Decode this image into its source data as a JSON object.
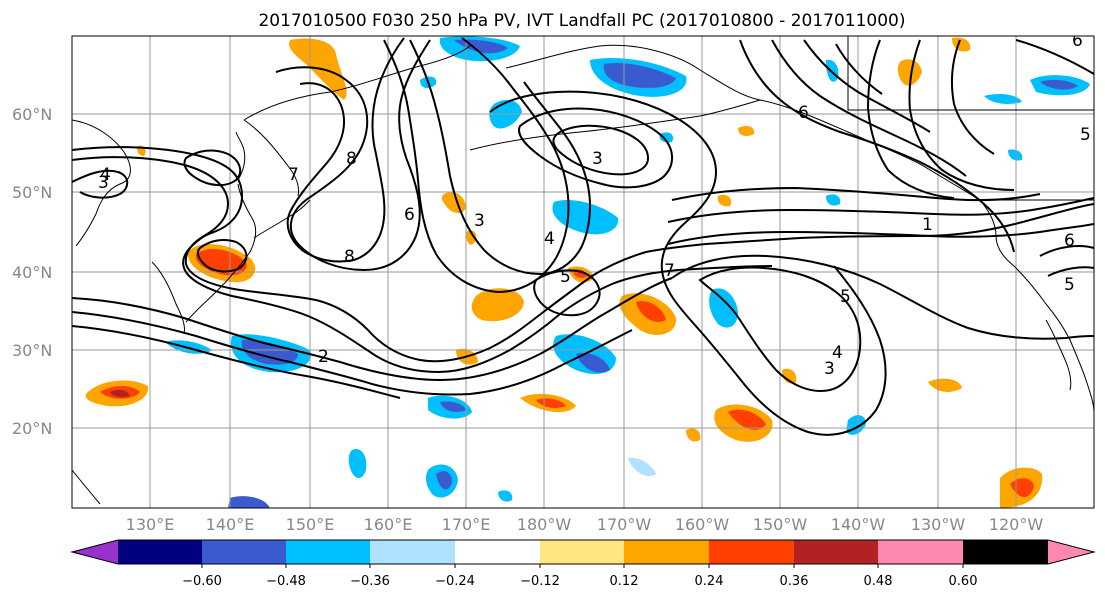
{
  "title": "2017010500 F030 250 hPa PV, IVT Landfall PC (2017010800 - 2017011000)",
  "lat_labels": [
    "20°N",
    "30°N",
    "40°N",
    "50°N",
    "60°N"
  ],
  "lon_labels": [
    "130°E",
    "140°E",
    "150°E",
    "160°E",
    "170°E",
    "180°W",
    "170°W",
    "160°W",
    "150°W",
    "140°W",
    "130°W",
    "120°W"
  ],
  "colorbar": {
    "ticks": [
      "−0.60",
      "−0.48",
      "−0.36",
      "−0.24",
      "−0.12",
      "0.12",
      "0.24",
      "0.36",
      "0.48",
      "0.60"
    ],
    "colors": [
      "#9932cc",
      "#000080",
      "#3a5bcf",
      "#00bfff",
      "#b0e2ff",
      "#ffffff",
      "#ffe680",
      "#ffa500",
      "#ff4000",
      "#b22222",
      "#ff88b0"
    ]
  },
  "contour_labels": [
    "3",
    "4",
    "7",
    "8",
    "6",
    "8",
    "3",
    "4",
    "5",
    "3",
    "7",
    "1",
    "5",
    "3",
    "4",
    "2",
    "6",
    "5",
    "6",
    "5",
    "6"
  ],
  "colors": {
    "land": "#000000",
    "grid": "#999999"
  }
}
